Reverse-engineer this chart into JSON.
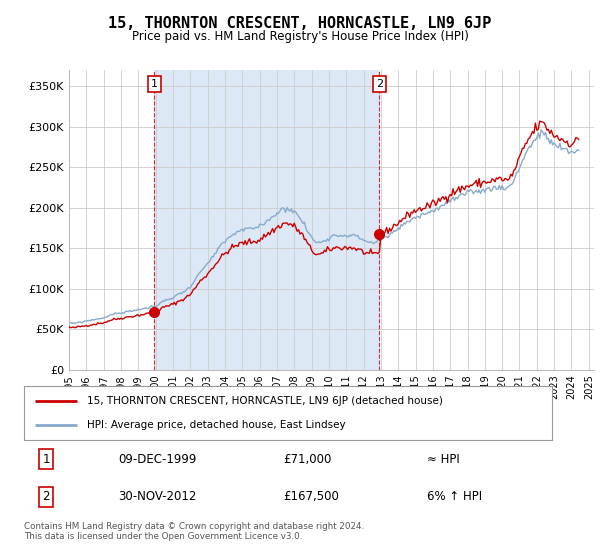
{
  "title": "15, THORNTON CRESCENT, HORNCASTLE, LN9 6JP",
  "subtitle": "Price paid vs. HM Land Registry's House Price Index (HPI)",
  "legend_line1": "15, THORNTON CRESCENT, HORNCASTLE, LN9 6JP (detached house)",
  "legend_line2": "HPI: Average price, detached house, East Lindsey",
  "annotation1_num": "1",
  "annotation1_date": "09-DEC-1999",
  "annotation1_price": "£71,000",
  "annotation1_hpi": "≈ HPI",
  "annotation2_num": "2",
  "annotation2_date": "30-NOV-2012",
  "annotation2_price": "£167,500",
  "annotation2_hpi": "6% ↑ HPI",
  "footer": "Contains HM Land Registry data © Crown copyright and database right 2024.\nThis data is licensed under the Open Government Licence v3.0.",
  "ylim": [
    0,
    370000
  ],
  "yticks": [
    0,
    50000,
    100000,
    150000,
    200000,
    250000,
    300000,
    350000
  ],
  "ytick_labels": [
    "£0",
    "£50K",
    "£100K",
    "£150K",
    "£200K",
    "£250K",
    "£300K",
    "£350K"
  ],
  "line_color_red": "#cc0000",
  "line_color_blue": "#88aacc",
  "shade_color": "#dce8f5",
  "background_color": "#ffffff",
  "grid_color": "#cccccc",
  "vline1_x": 1999.92,
  "vline2_x": 2012.92,
  "marker1_x": 1999.92,
  "marker1_y": 71000,
  "marker2_x": 2012.92,
  "marker2_y": 167500,
  "hpi_quarterly": {
    "x": [
      1995.0,
      1995.25,
      1995.5,
      1995.75,
      1996.0,
      1996.25,
      1996.5,
      1996.75,
      1997.0,
      1997.25,
      1997.5,
      1997.75,
      1998.0,
      1998.25,
      1998.5,
      1998.75,
      1999.0,
      1999.25,
      1999.5,
      1999.75,
      2000.0,
      2000.25,
      2000.5,
      2000.75,
      2001.0,
      2001.25,
      2001.5,
      2001.75,
      2002.0,
      2002.25,
      2002.5,
      2002.75,
      2003.0,
      2003.25,
      2003.5,
      2003.75,
      2004.0,
      2004.25,
      2004.5,
      2004.75,
      2005.0,
      2005.25,
      2005.5,
      2005.75,
      2006.0,
      2006.25,
      2006.5,
      2006.75,
      2007.0,
      2007.25,
      2007.5,
      2007.75,
      2008.0,
      2008.25,
      2008.5,
      2008.75,
      2009.0,
      2009.25,
      2009.5,
      2009.75,
      2010.0,
      2010.25,
      2010.5,
      2010.75,
      2011.0,
      2011.25,
      2011.5,
      2011.75,
      2012.0,
      2012.25,
      2012.5,
      2012.75,
      2013.0,
      2013.25,
      2013.5,
      2013.75,
      2014.0,
      2014.25,
      2014.5,
      2014.75,
      2015.0,
      2015.25,
      2015.5,
      2015.75,
      2016.0,
      2016.25,
      2016.5,
      2016.75,
      2017.0,
      2017.25,
      2017.5,
      2017.75,
      2018.0,
      2018.25,
      2018.5,
      2018.75,
      2019.0,
      2019.25,
      2019.5,
      2019.75,
      2020.0,
      2020.25,
      2020.5,
      2020.75,
      2021.0,
      2021.25,
      2021.5,
      2021.75,
      2022.0,
      2022.25,
      2022.5,
      2022.75,
      2023.0,
      2023.25,
      2023.5,
      2023.75,
      2024.0,
      2024.25,
      2024.5
    ],
    "y": [
      58000,
      57000,
      58000,
      59000,
      60000,
      61000,
      62000,
      63000,
      64000,
      66000,
      68000,
      69000,
      70000,
      71000,
      72000,
      73000,
      74000,
      75000,
      76000,
      77000,
      78000,
      82000,
      85000,
      87000,
      89000,
      92000,
      95000,
      98000,
      103000,
      110000,
      118000,
      125000,
      130000,
      138000,
      145000,
      152000,
      158000,
      163000,
      167000,
      170000,
      172000,
      173000,
      174000,
      175000,
      177000,
      181000,
      185000,
      189000,
      193000,
      197000,
      199000,
      198000,
      195000,
      189000,
      182000,
      172000,
      163000,
      158000,
      157000,
      160000,
      163000,
      165000,
      166000,
      166000,
      166000,
      166000,
      165000,
      163000,
      160000,
      158000,
      157000,
      158000,
      160000,
      163000,
      166000,
      170000,
      174000,
      178000,
      182000,
      186000,
      188000,
      190000,
      192000,
      194000,
      196000,
      199000,
      202000,
      205000,
      208000,
      211000,
      213000,
      215000,
      217000,
      219000,
      220000,
      221000,
      222000,
      223000,
      224000,
      225000,
      226000,
      224000,
      228000,
      238000,
      250000,
      262000,
      272000,
      280000,
      287000,
      291000,
      289000,
      282000,
      278000,
      275000,
      272000,
      270000,
      268000,
      270000,
      275000
    ]
  },
  "xlim_left": 1995.0,
  "xlim_right": 2025.3
}
